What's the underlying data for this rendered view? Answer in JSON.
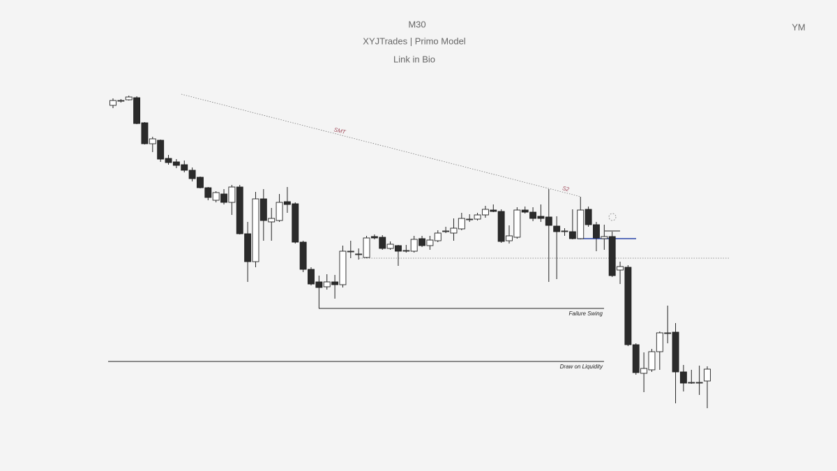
{
  "chart_data": {
    "type": "candlestick",
    "timeframe": "M30",
    "title": "XYJTrades | Primo Model",
    "subtitle": "Link in Bio",
    "symbol": "YM",
    "ylim": [
      0,
      675
    ],
    "open": [
      524,
      531,
      532,
      535,
      499,
      469,
      474,
      448,
      443,
      439,
      431,
      421,
      406,
      388,
      397,
      385,
      407,
      340,
      300,
      390,
      357,
      359,
      386,
      383,
      328,
      289,
      271,
      264,
      271,
      267,
      315,
      311,
      306,
      336,
      335,
      319,
      323,
      316,
      315,
      333,
      323,
      330,
      344,
      341,
      347,
      361,
      361,
      367,
      374,
      372,
      330,
      335,
      374,
      371,
      365,
      364,
      351,
      344,
      343,
      333,
      375,
      353,
      333,
      336,
      288,
      292,
      181,
      140,
      145,
      171,
      198,
      199,
      142,
      127,
      127,
      129
    ],
    "high": [
      534,
      533,
      538,
      537,
      500,
      479,
      475,
      453,
      447,
      445,
      435,
      422,
      407,
      401,
      404,
      410,
      410,
      357,
      400,
      404,
      377,
      397,
      407,
      385,
      330,
      292,
      280,
      282,
      281,
      323,
      330,
      319,
      337,
      339,
      338,
      329,
      324,
      324,
      337,
      337,
      337,
      345,
      350,
      362,
      370,
      368,
      370,
      380,
      382,
      375,
      352,
      378,
      379,
      378,
      382,
      404,
      365,
      348,
      375,
      393,
      379,
      357,
      353,
      343,
      300,
      295,
      183,
      170,
      175,
      200,
      237,
      212,
      152,
      145,
      151,
      150
    ],
    "low": [
      520,
      528,
      531,
      497,
      468,
      457,
      443,
      439,
      434,
      428,
      415,
      405,
      388,
      385,
      382,
      367,
      339,
      271,
      292,
      330,
      330,
      357,
      370,
      326,
      285,
      266,
      233,
      260,
      247,
      263,
      305,
      303,
      305,
      332,
      317,
      317,
      294,
      313,
      313,
      321,
      317,
      328,
      341,
      330,
      345,
      357,
      359,
      363,
      371,
      327,
      326,
      333,
      369,
      358,
      357,
      271,
      275,
      337,
      332,
      332,
      350,
      315,
      317,
      278,
      268,
      179,
      138,
      113,
      142,
      145,
      183,
      97,
      114,
      125,
      109,
      90
    ],
    "close": [
      531,
      531,
      536,
      498,
      469,
      476,
      447,
      442,
      438,
      431,
      419,
      406,
      392,
      399,
      385,
      407,
      340,
      300,
      390,
      359,
      362,
      385,
      382,
      328,
      289,
      268,
      263,
      271,
      267,
      315,
      315,
      311,
      334,
      334,
      319,
      325,
      315,
      316,
      332,
      323,
      331,
      341,
      344,
      348,
      362,
      361,
      367,
      375,
      372,
      329,
      337,
      374,
      371,
      362,
      362,
      352,
      343,
      344,
      333,
      374,
      353,
      334,
      336,
      280,
      293,
      181,
      141,
      147,
      171,
      198,
      198,
      142,
      126,
      127,
      127,
      146
    ],
    "annotations": [
      {
        "text": "SMT"
      },
      {
        "text": "S2"
      },
      {
        "text": "Failure Swing",
        "value": 233
      },
      {
        "text": "Draw on Liquidity",
        "value": 157
      }
    ]
  }
}
